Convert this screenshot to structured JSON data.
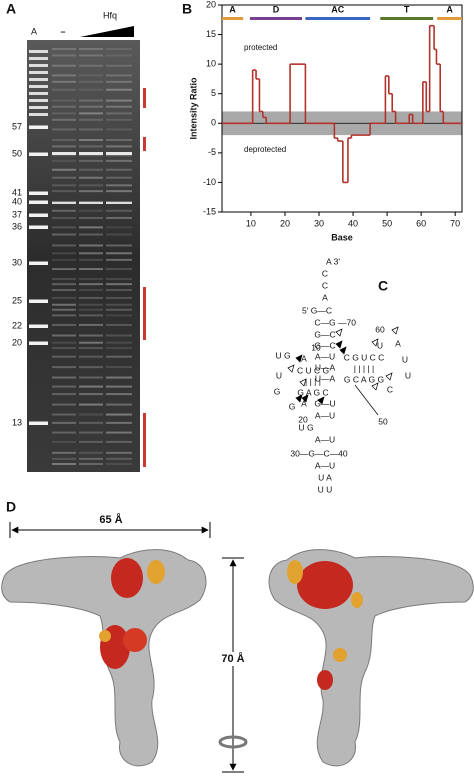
{
  "panel_a": {
    "label": "A",
    "lanes": [
      "A",
      "–",
      "Hfq"
    ],
    "markers": [
      "57",
      "50",
      "41",
      "40",
      "37",
      "36",
      "30",
      "25",
      "22",
      "20",
      "13"
    ]
  },
  "chart_data": {
    "type": "line",
    "step": "post",
    "panel_label": "B",
    "ylabel": "Intensity Ratio",
    "xlabel": "Base",
    "annotations": [
      "protected",
      "deprotected"
    ],
    "domains": [
      {
        "label": "A",
        "start": 1.5,
        "end": 7.7,
        "color": "#e39a3b"
      },
      {
        "label": "D",
        "start": 9.7,
        "end": 25,
        "color": "#7b3f8f"
      },
      {
        "label": "AC",
        "start": 26,
        "end": 45,
        "color": "#3a66c0"
      },
      {
        "label": "T",
        "start": 48,
        "end": 63.5,
        "color": "#55782a"
      },
      {
        "label": "A",
        "start": 64.7,
        "end": 72,
        "color": "#e39a3b"
      }
    ],
    "band": [
      -2,
      2
    ],
    "band_color": "#a9a9a9",
    "x": [
      1.5,
      10.5,
      11.5,
      12.5,
      13.5,
      14.5,
      21.5,
      26,
      34.5,
      35.5,
      37,
      38.5,
      39.5,
      45,
      49.5,
      50.5,
      51.5,
      52.5,
      56.5,
      57.5,
      60.5,
      61.5,
      62.5,
      63.8,
      64.5,
      65.6,
      66.5
    ],
    "values": [
      0,
      9,
      7.5,
      2,
      1,
      0,
      10,
      0,
      -2.5,
      -3,
      -10,
      -2.5,
      -2,
      0,
      8,
      5,
      2,
      0,
      1.5,
      0,
      7,
      2,
      16.5,
      12.5,
      10,
      2,
      0
    ],
    "color": "#b3322b",
    "xlim": [
      1.5,
      72
    ],
    "ylim": [
      -15,
      20
    ],
    "xticks": [
      10,
      20,
      30,
      40,
      50,
      60,
      70
    ],
    "yticks": [
      -15,
      -10,
      -5,
      0,
      5,
      10,
      15,
      20
    ]
  },
  "panel_c": {
    "label": "C",
    "letters": [
      "A 3'",
      "C",
      "C",
      "A",
      "5' G—C",
      "C—G",
      "—70",
      "G—C",
      "G—C",
      "A—U",
      "U—A",
      "U—A",
      "U G",
      "A",
      "10",
      "C U C G",
      "| | | |",
      "G A G C",
      "G",
      "G",
      "A",
      "20",
      "U",
      "G—U",
      "A—U",
      "U G",
      "A—U",
      "30—G—C—40",
      "A—U",
      "U A",
      "U U",
      "60",
      "U",
      "A",
      "C G U C C",
      "| | | | |",
      "G C A G G",
      "U",
      "C",
      "U",
      "50"
    ]
  },
  "panel_d": {
    "label": "D",
    "width": "65 Å",
    "height": "70 Å"
  }
}
